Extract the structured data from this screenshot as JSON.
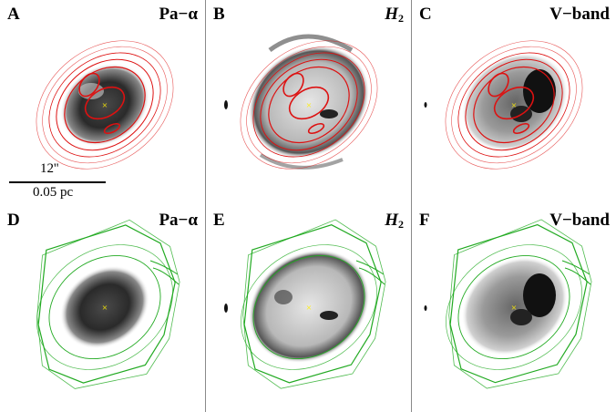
{
  "panels": [
    {
      "letter": "A",
      "filter": "Pa−α",
      "contour": "red"
    },
    {
      "letter": "B",
      "filter": "H",
      "sub": "2",
      "contour": "red"
    },
    {
      "letter": "C",
      "filter": "V−band",
      "contour": "red"
    },
    {
      "letter": "D",
      "filter": "Pa−α",
      "contour": "green"
    },
    {
      "letter": "E",
      "filter": "H",
      "sub": "2",
      "contour": "green"
    },
    {
      "letter": "F",
      "filter": "V−band",
      "contour": "green"
    }
  ],
  "scale": {
    "angular": "12''",
    "physical": "0.05 pc"
  },
  "colors": {
    "red_contour": "#dd1111",
    "green_contour": "#22aa22",
    "center_marker": "#ffee00"
  }
}
